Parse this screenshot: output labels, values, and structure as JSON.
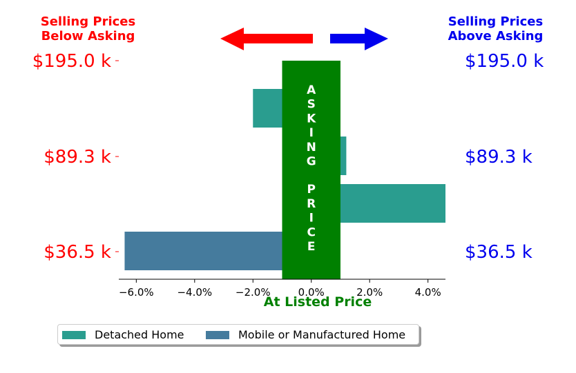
{
  "header": {
    "left_title_line1": "Selling Prices",
    "left_title_line2": "Below Asking",
    "right_title_line1": "Selling Prices",
    "right_title_line2": "Above Asking"
  },
  "center_label": "ASKING PRICE",
  "colors": {
    "below": "#ff0000",
    "above": "#0000ee",
    "asking": "#008000",
    "detached": "#2a9d8f",
    "mobile": "#457b9d"
  },
  "chart_data": {
    "type": "bar",
    "orientation": "horizontal",
    "categories": [
      "$195.0 k",
      "$89.3 k",
      "$36.5 k"
    ],
    "series": [
      {
        "name": "Detached Home",
        "values": [
          -2.0,
          1.2,
          4.6
        ]
      },
      {
        "name": "Mobile or Manufactured Home",
        "values": [
          null,
          null,
          -6.4
        ]
      }
    ],
    "xlabel": "At Listed Price",
    "ylabel": "",
    "xlim": [
      -6.6,
      4.6
    ],
    "xticks": [
      -6,
      -4,
      -2,
      0,
      2,
      4
    ],
    "xtick_labels": [
      "−6.0%",
      "−4.0%",
      "−2.0%",
      "0.0%",
      "2.0%",
      "4.0%"
    ],
    "asking_band": [
      -1.0,
      1.0
    ],
    "grid": false,
    "legend_position": "bottom"
  }
}
